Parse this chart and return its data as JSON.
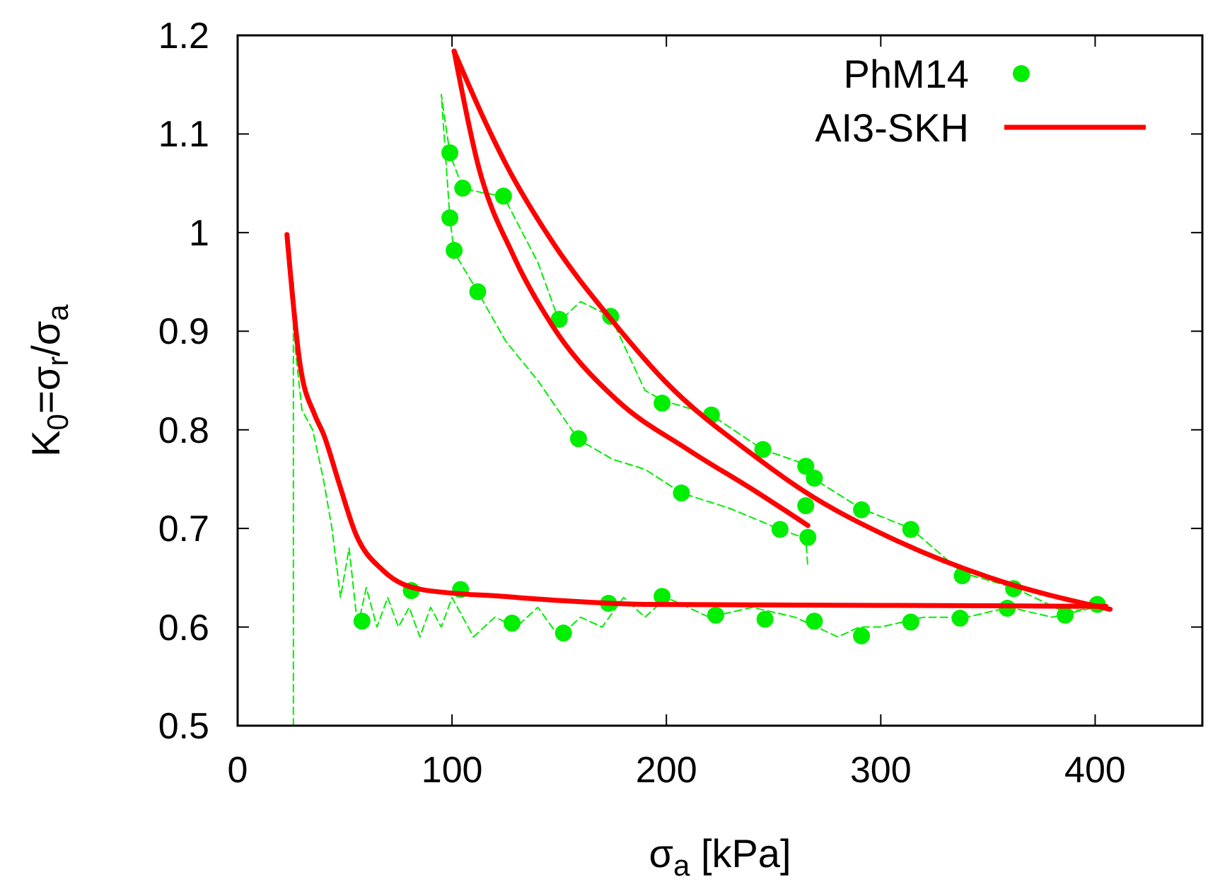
{
  "chart_data": {
    "type": "line",
    "xlabel": "σ$_{a}$ [kPa]",
    "ylabel": "K$_{0}$=σ$_{r}$/σ$_{a}$",
    "xlim": [
      0,
      450
    ],
    "ylim": [
      0.5,
      1.2
    ],
    "xticks": [
      0,
      100,
      200,
      300,
      400
    ],
    "yticks": [
      0.5,
      0.6,
      0.7,
      0.8,
      0.9,
      1,
      1.1,
      1.2
    ],
    "grid": false,
    "legend": "top right",
    "series": [
      {
        "color": "#00ee00",
        "line_style": "dashed",
        "x": [
          26,
          26,
          27,
          30,
          35,
          40,
          44,
          48,
          52,
          56,
          60,
          65,
          70,
          75,
          80,
          85,
          90,
          95,
          100,
          110,
          120,
          130,
          140,
          150,
          160,
          170,
          180,
          190,
          200,
          220,
          240,
          260,
          270,
          280,
          290,
          300,
          320,
          340,
          360,
          380,
          400,
          386,
          362,
          338,
          314,
          291,
          269,
          265,
          245,
          221,
          198,
          190,
          174,
          160,
          150,
          140,
          124,
          115,
          105,
          99,
          95,
          99,
          101,
          112,
          125,
          140,
          159,
          175,
          190,
          207,
          230,
          253,
          265,
          266
        ],
        "values": [
          0.5,
          0.95,
          0.88,
          0.82,
          0.8,
          0.75,
          0.7,
          0.63,
          0.68,
          0.6,
          0.64,
          0.6,
          0.63,
          0.6,
          0.62,
          0.59,
          0.62,
          0.6,
          0.63,
          0.59,
          0.61,
          0.6,
          0.62,
          0.59,
          0.61,
          0.6,
          0.63,
          0.61,
          0.63,
          0.61,
          0.62,
          0.61,
          0.6,
          0.59,
          0.6,
          0.6,
          0.61,
          0.61,
          0.62,
          0.61,
          0.62,
          0.615,
          0.64,
          0.655,
          0.7,
          0.72,
          0.75,
          0.765,
          0.78,
          0.815,
          0.83,
          0.84,
          0.915,
          0.93,
          0.91,
          0.97,
          1.037,
          1.04,
          1.045,
          1.08,
          1.14,
          1.015,
          0.98,
          0.94,
          0.89,
          0.85,
          0.79,
          0.77,
          0.76,
          0.736,
          0.72,
          0.699,
          0.69,
          0.66
        ]
      },
      {
        "type": "scatter",
        "name": "PhM14",
        "color": "#00ee00",
        "marker": "circle",
        "x": [
          99,
          105,
          124,
          99,
          101,
          112,
          150,
          174,
          159,
          58,
          81,
          104,
          128,
          152,
          173,
          198,
          221,
          245,
          265,
          269,
          265,
          266,
          253,
          207,
          291,
          314,
          338,
          362,
          401,
          386,
          359,
          337,
          314,
          291,
          269,
          246,
          223,
          198
        ],
        "values": [
          1.081,
          1.045,
          1.037,
          1.015,
          0.982,
          0.94,
          0.912,
          0.915,
          0.791,
          0.606,
          0.637,
          0.638,
          0.604,
          0.594,
          0.624,
          0.827,
          0.815,
          0.78,
          0.763,
          0.751,
          0.723,
          0.691,
          0.699,
          0.736,
          0.719,
          0.699,
          0.652,
          0.639,
          0.623,
          0.612,
          0.619,
          0.609,
          0.605,
          0.591,
          0.606,
          0.608,
          0.612,
          0.631
        ]
      },
      {
        "name": "AI3-SKH",
        "color": "#ff0000",
        "line_style": "solid",
        "x": [
          23,
          29,
          36,
          40,
          47,
          55,
          68,
          86,
          124,
          190,
          300,
          405
        ],
        "values": [
          0.998,
          0.868,
          0.815,
          0.796,
          0.748,
          0.695,
          0.657,
          0.638,
          0.631,
          0.623,
          0.622,
          0.621
        ]
      },
      {
        "color": "#ff0000",
        "line_style": "solid",
        "x": [
          101,
          116,
          125,
          147,
          175,
          199,
          242,
          264,
          307,
          351,
          407
        ],
        "values": [
          1.184,
          1.11,
          1.07,
          0.99,
          0.91,
          0.85,
          0.772,
          0.738,
          0.688,
          0.65,
          0.618
        ]
      },
      {
        "color": "#ff0000",
        "line_style": "solid",
        "x": [
          101,
          112,
          129,
          147,
          177,
          210,
          242,
          266
        ],
        "values": [
          1.184,
          1.07,
          0.975,
          0.905,
          0.83,
          0.78,
          0.737,
          0.703
        ]
      }
    ]
  }
}
